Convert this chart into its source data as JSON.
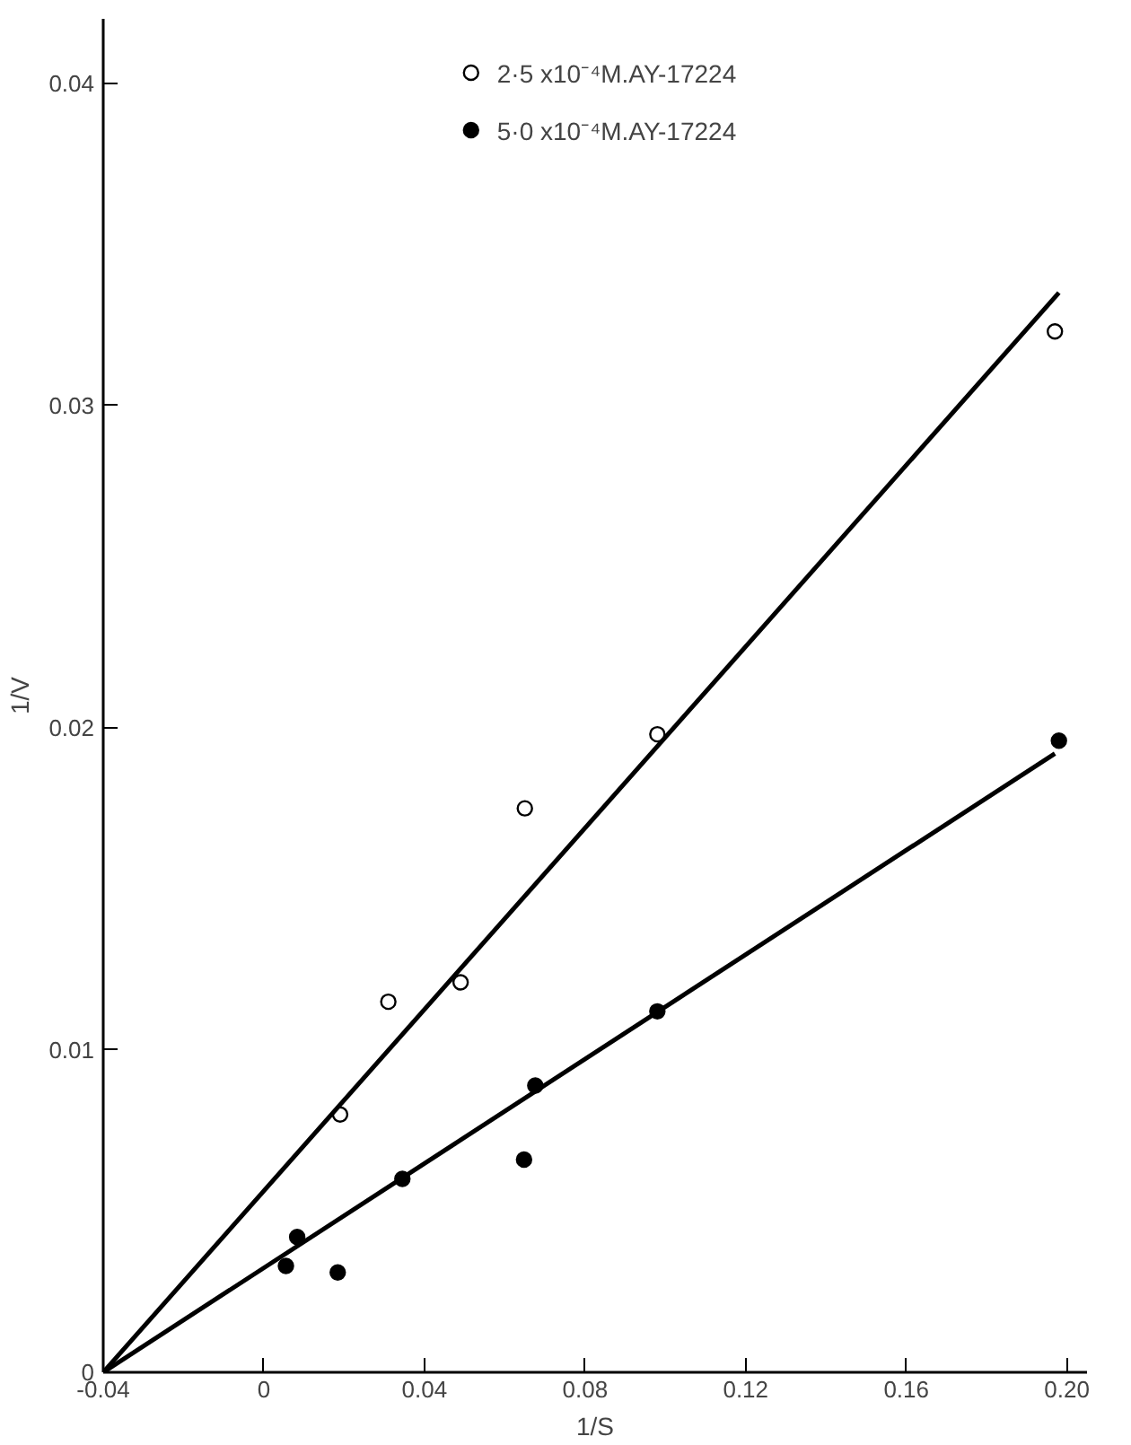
{
  "chart_data": {
    "type": "scatter",
    "xlabel": "1/S",
    "ylabel": "1/V",
    "xlim": [
      -0.04,
      0.205
    ],
    "ylim": [
      0,
      0.042
    ],
    "xticks": [
      -0.04,
      0,
      0.04,
      0.08,
      0.12,
      0.16,
      {
        "value": 0.2,
        "label": "0.20"
      }
    ],
    "yticks": [
      0,
      0.01,
      0.02,
      0.03,
      0.04
    ],
    "grid": false,
    "legend": "top",
    "series": [
      {
        "name": "2·5 x10⁻⁴M.AY-17224",
        "marker": "circle_open",
        "color": "#000000",
        "x": [
          0.019,
          0.031,
          0.049,
          0.065,
          0.098,
          0.197
        ],
        "values": [
          0.008,
          0.0115,
          0.0121,
          0.0175,
          0.0198,
          0.0323
        ]
      },
      {
        "name": "5·0 x10⁻⁴M.AY-17224",
        "marker": "circle",
        "color": "#000000",
        "x": [
          0.0055,
          0.0083,
          0.0184,
          0.0345,
          0.0648,
          0.0676,
          0.098,
          0.198
        ],
        "values": [
          0.0033,
          0.0042,
          0.0031,
          0.006,
          0.0066,
          0.0089,
          0.0112,
          0.0196
        ]
      },
      {
        "type": "line",
        "color": "#000000",
        "x": [
          -0.04,
          0.198
        ],
        "values": [
          0,
          0.0335
        ]
      },
      {
        "type": "line",
        "color": "#000000",
        "x": [
          -0.04,
          0.197
        ],
        "values": [
          0,
          0.0192
        ]
      }
    ]
  }
}
